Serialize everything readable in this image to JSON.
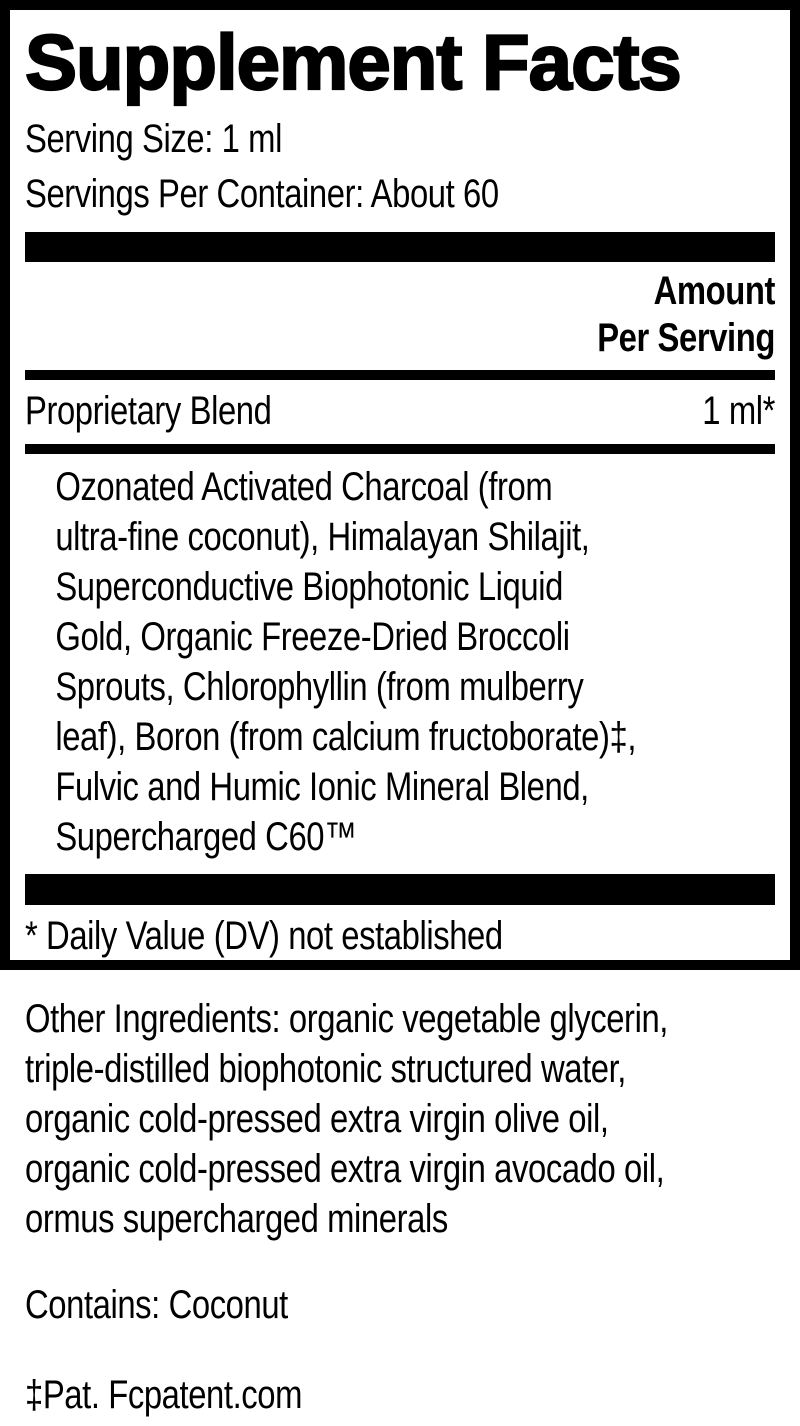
{
  "panel": {
    "title": "Supplement Facts",
    "serving_size": "Serving Size: 1 ml",
    "servings_per_container": "Servings Per Container: About 60",
    "amount_header": "Amount\nPer Serving",
    "blend_name": "Proprietary Blend",
    "blend_amount": "1 ml*",
    "blend_ingredients": "Ozonated Activated Charcoal (from\nultra-fine coconut), Himalayan Shilajit,\nSuperconductive Biophotonic Liquid\nGold, Organic Freeze-Dried Broccoli\nSprouts, Chlorophyllin (from mulberry\nleaf), Boron (from calcium fructoborate)‡,\nFulvic and Humic Ionic Mineral Blend,\nSupercharged C60™",
    "footnote": "* Daily Value (DV) not established"
  },
  "other_ingredients": "Other Ingredients: organic vegetable glycerin,\ntriple-distilled biophotonic structured water,\norganic cold-pressed extra virgin olive oil,\norganic cold-pressed extra virgin avocado oil,\normus supercharged minerals",
  "contains": "Contains: Coconut",
  "patent": "‡Pat. Fcpatent.com",
  "colors": {
    "text": "#000000",
    "background": "#ffffff",
    "divider": "#000000"
  }
}
